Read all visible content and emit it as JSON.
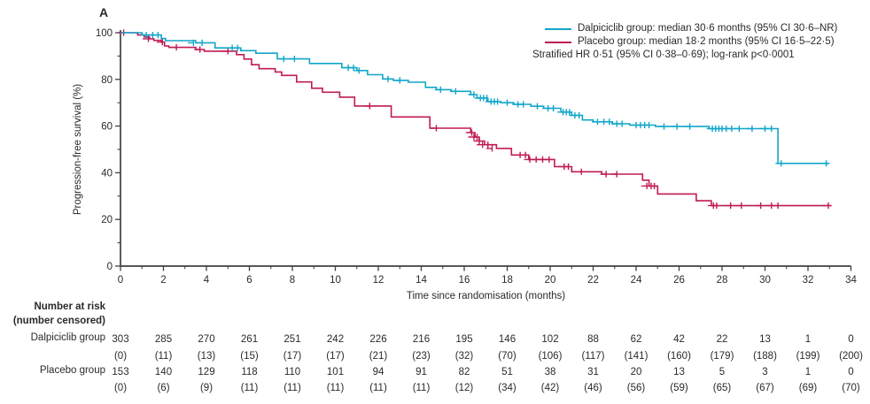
{
  "panel_label": "A",
  "colors": {
    "dalpiciclib": "#12A6C9",
    "placebo": "#C01A55",
    "axis": "#404040",
    "text": "#2b2a29"
  },
  "legend": {
    "dalpiciclib_label": "Dalpiciclib group: median 30·6 months (95% CI 30·6–NR)",
    "placebo_label": "Placebo group: median 18·2 months (95% CI 16·5–22·5)",
    "stratified_note": "Stratified HR 0·51 (95% CI 0·38–0·69); log-rank p<0·0001"
  },
  "chart_data": {
    "type": "line",
    "subtype": "kaplan-meier-step",
    "xlabel": "Time since randomisation (months)",
    "ylabel": "Progression-free survival (%)",
    "xlim": [
      0,
      34
    ],
    "ylim": [
      0,
      100
    ],
    "x_ticks": [
      0,
      2,
      4,
      6,
      8,
      10,
      12,
      14,
      16,
      18,
      20,
      22,
      24,
      26,
      28,
      30,
      32,
      34
    ],
    "x_minor_ticks": [
      1,
      3,
      5,
      7,
      9,
      11,
      13,
      15,
      17,
      19,
      21,
      23,
      25,
      27,
      29,
      31,
      33
    ],
    "y_ticks": [
      0,
      20,
      40,
      60,
      80,
      100
    ],
    "y_minor_ticks": [
      10,
      30,
      50,
      70,
      90
    ],
    "grid": false,
    "legend_position": "top-right",
    "series": [
      {
        "name": "Placebo group",
        "color": "#C01A55",
        "line_end_x": 33.1,
        "steps": [
          [
            0,
            100
          ],
          [
            0.8,
            99
          ],
          [
            1.1,
            98.2
          ],
          [
            1.35,
            97.4
          ],
          [
            1.55,
            96.7
          ],
          [
            1.9,
            96
          ],
          [
            2.05,
            94.3
          ],
          [
            2.25,
            93.7
          ],
          [
            3.5,
            92.8
          ],
          [
            3.9,
            92.1
          ],
          [
            5.4,
            90.6
          ],
          [
            5.75,
            88.7
          ],
          [
            6.1,
            86.3
          ],
          [
            6.45,
            84.6
          ],
          [
            7.2,
            83.2
          ],
          [
            7.5,
            81.7
          ],
          [
            8.2,
            78.9
          ],
          [
            8.9,
            76.2
          ],
          [
            9.4,
            74.5
          ],
          [
            10.2,
            72.4
          ],
          [
            10.9,
            68.6
          ],
          [
            12.6,
            63.9
          ],
          [
            14.4,
            59.1
          ],
          [
            16.3,
            57.2
          ],
          [
            16.5,
            55.3
          ],
          [
            16.7,
            53.6
          ],
          [
            16.95,
            52
          ],
          [
            17.5,
            50.4
          ],
          [
            18.2,
            47.6
          ],
          [
            19.0,
            45.7
          ],
          [
            20.2,
            42.6
          ],
          [
            21.0,
            40.4
          ],
          [
            22.4,
            39.4
          ],
          [
            24.3,
            36.8
          ],
          [
            24.6,
            34.3
          ],
          [
            25.0,
            30.9
          ],
          [
            26.8,
            28
          ],
          [
            27.5,
            25.9
          ]
        ],
        "censor_marks": [
          [
            0.15,
            100
          ],
          [
            1.3,
            97.4
          ],
          [
            1.95,
            96
          ],
          [
            2.6,
            93.7
          ],
          [
            3.7,
            92.8
          ],
          [
            5.0,
            92.1
          ],
          [
            11.6,
            68.6
          ],
          [
            14.7,
            59.1
          ],
          [
            16.35,
            57.2
          ],
          [
            16.45,
            55.3
          ],
          [
            16.6,
            55.3
          ],
          [
            16.7,
            53.6
          ],
          [
            16.85,
            52
          ],
          [
            17.1,
            52
          ],
          [
            17.3,
            50.4
          ],
          [
            18.6,
            47.6
          ],
          [
            18.85,
            47.6
          ],
          [
            19.05,
            45.7
          ],
          [
            19.35,
            45.7
          ],
          [
            19.65,
            45.7
          ],
          [
            19.95,
            45.7
          ],
          [
            20.65,
            42.6
          ],
          [
            20.85,
            42.6
          ],
          [
            21.45,
            40.4
          ],
          [
            22.6,
            39.4
          ],
          [
            23.1,
            39.4
          ],
          [
            24.5,
            34.3
          ],
          [
            24.7,
            34.3
          ],
          [
            24.85,
            34.3
          ],
          [
            27.6,
            25.9
          ],
          [
            27.75,
            25.9
          ],
          [
            28.4,
            25.9
          ],
          [
            28.9,
            25.9
          ],
          [
            29.8,
            25.9
          ],
          [
            30.3,
            25.9
          ],
          [
            30.6,
            25.9
          ],
          [
            32.95,
            25.9
          ]
        ]
      },
      {
        "name": "Dalpiciclib group",
        "color": "#12A6C9",
        "line_end_x": 33.0,
        "steps": [
          [
            0,
            100
          ],
          [
            1.0,
            99
          ],
          [
            1.9,
            97.5
          ],
          [
            2.1,
            96.6
          ],
          [
            3.5,
            95.7
          ],
          [
            4.4,
            93.5
          ],
          [
            5.6,
            92.3
          ],
          [
            6.3,
            91.2
          ],
          [
            7.3,
            88.8
          ],
          [
            8.8,
            86.8
          ],
          [
            10.3,
            85
          ],
          [
            11.0,
            83.8
          ],
          [
            11.5,
            82
          ],
          [
            12.2,
            80.2
          ],
          [
            12.7,
            79.6
          ],
          [
            13.4,
            78.8
          ],
          [
            14.2,
            76.6
          ],
          [
            14.7,
            75.6
          ],
          [
            15.4,
            74.9
          ],
          [
            16.3,
            73.5
          ],
          [
            16.6,
            72
          ],
          [
            17.1,
            70.5
          ],
          [
            17.7,
            70
          ],
          [
            18.3,
            69.3
          ],
          [
            19.1,
            68.5
          ],
          [
            19.7,
            67.6
          ],
          [
            20.5,
            66
          ],
          [
            21.0,
            64.6
          ],
          [
            21.5,
            62.6
          ],
          [
            22.0,
            61.8
          ],
          [
            22.9,
            61
          ],
          [
            23.7,
            60.4
          ],
          [
            24.9,
            59.8
          ],
          [
            27.4,
            58.9
          ],
          [
            30.6,
            44
          ]
        ],
        "censor_marks": [
          [
            1.2,
            99
          ],
          [
            1.5,
            99
          ],
          [
            1.75,
            99
          ],
          [
            3.4,
            95.7
          ],
          [
            3.8,
            95.7
          ],
          [
            5.2,
            93.5
          ],
          [
            5.45,
            93.5
          ],
          [
            7.6,
            88.8
          ],
          [
            8.1,
            88.8
          ],
          [
            10.6,
            85
          ],
          [
            10.85,
            85
          ],
          [
            11.1,
            83.8
          ],
          [
            12.45,
            80.2
          ],
          [
            13.0,
            79.6
          ],
          [
            14.9,
            75.6
          ],
          [
            15.6,
            74.9
          ],
          [
            16.45,
            73.5
          ],
          [
            16.75,
            72
          ],
          [
            16.9,
            72
          ],
          [
            17.05,
            72
          ],
          [
            17.25,
            70.5
          ],
          [
            17.4,
            70.5
          ],
          [
            17.55,
            70.5
          ],
          [
            18.0,
            70
          ],
          [
            18.5,
            69.3
          ],
          [
            18.75,
            69.3
          ],
          [
            19.4,
            68.5
          ],
          [
            19.9,
            67.6
          ],
          [
            20.15,
            67.6
          ],
          [
            20.6,
            66
          ],
          [
            20.75,
            66
          ],
          [
            20.9,
            66
          ],
          [
            21.15,
            64.6
          ],
          [
            21.35,
            64.6
          ],
          [
            22.2,
            61.8
          ],
          [
            22.5,
            61.8
          ],
          [
            22.75,
            61.8
          ],
          [
            23.1,
            61
          ],
          [
            23.35,
            61
          ],
          [
            24.0,
            60.4
          ],
          [
            24.2,
            60.4
          ],
          [
            24.4,
            60.4
          ],
          [
            24.6,
            60.4
          ],
          [
            25.3,
            59.8
          ],
          [
            25.9,
            59.8
          ],
          [
            26.5,
            59.8
          ],
          [
            27.55,
            58.9
          ],
          [
            27.7,
            58.9
          ],
          [
            27.85,
            58.9
          ],
          [
            28.0,
            58.9
          ],
          [
            28.2,
            58.9
          ],
          [
            28.45,
            58.9
          ],
          [
            28.8,
            58.9
          ],
          [
            29.4,
            58.9
          ],
          [
            30.0,
            58.9
          ],
          [
            30.3,
            58.9
          ],
          [
            30.75,
            44
          ],
          [
            32.85,
            44
          ]
        ]
      }
    ]
  },
  "risk_table": {
    "header_line1": "Number at risk",
    "header_line2": "(number censored)",
    "columns": [
      0,
      2,
      4,
      6,
      8,
      10,
      12,
      14,
      16,
      18,
      20,
      22,
      24,
      26,
      28,
      30,
      32,
      34
    ],
    "rows": [
      {
        "label": "Dalpiciclib group",
        "at_risk": [
          303,
          285,
          270,
          261,
          251,
          242,
          226,
          216,
          195,
          146,
          102,
          88,
          62,
          42,
          22,
          13,
          1,
          0
        ],
        "censored": [
          0,
          11,
          13,
          15,
          17,
          17,
          21,
          23,
          32,
          70,
          106,
          117,
          141,
          160,
          179,
          188,
          199,
          200
        ]
      },
      {
        "label": "Placebo group",
        "at_risk": [
          153,
          140,
          129,
          118,
          110,
          101,
          94,
          91,
          82,
          51,
          38,
          31,
          20,
          13,
          5,
          3,
          1,
          0
        ],
        "censored": [
          0,
          6,
          9,
          11,
          11,
          11,
          11,
          11,
          12,
          34,
          42,
          46,
          56,
          59,
          65,
          67,
          69,
          70
        ]
      }
    ]
  }
}
